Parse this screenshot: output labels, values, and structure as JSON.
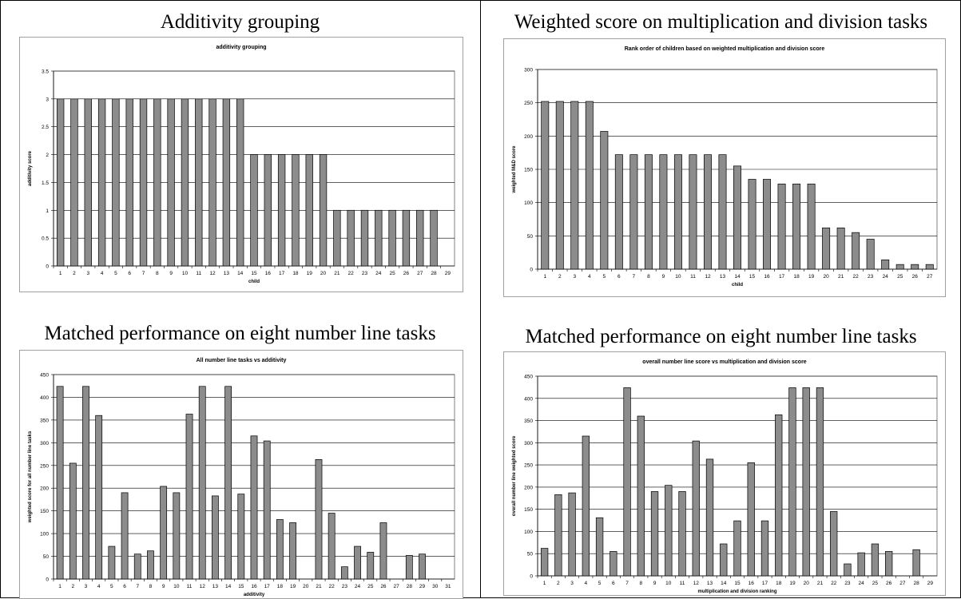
{
  "panels": [
    {
      "heading": "Additivity grouping",
      "chart_data": {
        "type": "bar",
        "title": "additivity grouping",
        "xlabel": "child",
        "ylabel": "additivity score",
        "ylim": [
          0,
          3.5
        ],
        "yticks": [
          "0",
          "0.5",
          "1",
          "1.5",
          "2",
          "2.5",
          "3",
          "3.5"
        ],
        "categories": [
          "1",
          "2",
          "3",
          "4",
          "5",
          "6",
          "7",
          "8",
          "9",
          "10",
          "11",
          "12",
          "13",
          "14",
          "15",
          "16",
          "17",
          "18",
          "19",
          "20",
          "21",
          "22",
          "23",
          "24",
          "25",
          "26",
          "27",
          "28",
          "29"
        ],
        "values": [
          3,
          3,
          3,
          3,
          3,
          3,
          3,
          3,
          3,
          3,
          3,
          3,
          3,
          3,
          2,
          2,
          2,
          2,
          2,
          2,
          1,
          1,
          1,
          1,
          1,
          1,
          1,
          1,
          null
        ],
        "grid": true,
        "bar_color": "#8c8c8c"
      }
    },
    {
      "heading": "Weighted score on multiplication and division tasks",
      "chart_data": {
        "type": "bar",
        "title": "Rank order of children based on weighted multiplication and division score",
        "xlabel": "child",
        "ylabel": "weighted M&D score",
        "ylim": [
          0,
          300
        ],
        "yticks": [
          "0",
          "50",
          "100",
          "150",
          "200",
          "250",
          "300"
        ],
        "categories": [
          "1",
          "2",
          "3",
          "4",
          "5",
          "6",
          "7",
          "8",
          "9",
          "10",
          "11",
          "12",
          "13",
          "14",
          "15",
          "16",
          "17",
          "18",
          "19",
          "20",
          "21",
          "22",
          "23",
          "24",
          "25",
          "26",
          "27"
        ],
        "values": [
          252,
          252,
          252,
          252,
          207,
          172,
          172,
          172,
          172,
          172,
          172,
          172,
          172,
          155,
          135,
          135,
          128,
          128,
          128,
          62,
          62,
          55,
          45,
          14,
          7,
          7,
          7
        ],
        "grid": true,
        "bar_color": "#8c8c8c"
      }
    },
    {
      "heading": "Matched performance on eight number line tasks",
      "chart_data": {
        "type": "bar",
        "title": "All number line tasks vs additivity",
        "xlabel": "additivity",
        "ylabel": "weighted score for all number line tasks",
        "ylim": [
          0,
          450
        ],
        "yticks": [
          "0",
          "50",
          "100",
          "150",
          "200",
          "250",
          "300",
          "350",
          "400",
          "450"
        ],
        "categories": [
          "1",
          "2",
          "3",
          "4",
          "5",
          "6",
          "7",
          "8",
          "9",
          "10",
          "11",
          "12",
          "13",
          "14",
          "15",
          "16",
          "17",
          "18",
          "19",
          "20",
          "21",
          "22",
          "23",
          "24",
          "25",
          "26",
          "27",
          "28",
          "29",
          "30",
          "31"
        ],
        "values": [
          424,
          255,
          424,
          360,
          72,
          190,
          55,
          62,
          204,
          190,
          363,
          424,
          183,
          424,
          187,
          315,
          304,
          131,
          124,
          null,
          263,
          145,
          27,
          72,
          59,
          124,
          null,
          52,
          55,
          null,
          null
        ],
        "grid": true,
        "bar_color": "#8c8c8c"
      }
    },
    {
      "heading": "Matched performance on eight number line tasks",
      "chart_data": {
        "type": "bar",
        "title": "overall number line score vs multiplication and division score",
        "xlabel": "multiplication and division ranking",
        "ylabel": "overall number line weighted score",
        "ylim": [
          0,
          450
        ],
        "yticks": [
          "0",
          "50",
          "100",
          "150",
          "200",
          "250",
          "300",
          "350",
          "400",
          "450"
        ],
        "categories": [
          "1",
          "2",
          "3",
          "4",
          "5",
          "6",
          "7",
          "8",
          "9",
          "10",
          "11",
          "12",
          "13",
          "14",
          "15",
          "16",
          "17",
          "18",
          "19",
          "20",
          "21",
          "22",
          "23",
          "24",
          "25",
          "26",
          "27",
          "28",
          "29"
        ],
        "values": [
          62,
          183,
          187,
          315,
          131,
          55,
          424,
          360,
          190,
          204,
          190,
          304,
          263,
          72,
          124,
          255,
          124,
          363,
          424,
          424,
          424,
          145,
          27,
          52,
          72,
          55,
          null,
          59,
          null
        ],
        "grid": true,
        "bar_color": "#8c8c8c"
      }
    }
  ]
}
